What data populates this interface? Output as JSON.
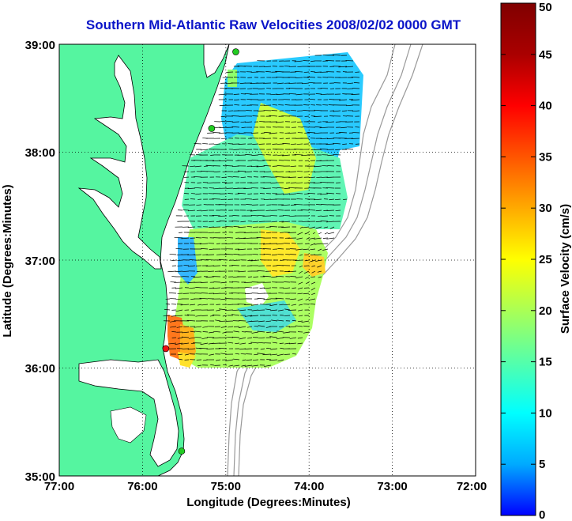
{
  "title": "Southern Mid-Atlantic Raw Velocities 2008/02/02 0000 GMT",
  "x_axis": {
    "label": "Longitude (Degrees:Minutes)",
    "ticks": [
      "77:00",
      "76:00",
      "75:00",
      "74:00",
      "73:00",
      "72:00"
    ]
  },
  "y_axis": {
    "label": "Latitude (Degrees:Minutes)",
    "ticks": [
      "39:00",
      "38:00",
      "37:00",
      "36:00",
      "35:00"
    ]
  },
  "colorbar": {
    "label": "Surface Velocity (cm/s)",
    "ticks": [
      "50",
      "45",
      "40",
      "35",
      "30",
      "25",
      "20",
      "15",
      "10",
      "5",
      "0"
    ],
    "min": 0,
    "max": 50,
    "colors": [
      "#0000ff",
      "#00aaff",
      "#00ffff",
      "#55ffaa",
      "#aaff55",
      "#ffff00",
      "#ffaa00",
      "#ff5500",
      "#ff0000",
      "#aa0000",
      "#800000"
    ]
  },
  "chart_data": {
    "type": "map",
    "xlim": [
      -77,
      -72
    ],
    "ylim": [
      35,
      39
    ],
    "grid": true,
    "land_color": "#55f5a0",
    "stations": [
      {
        "lon": -74.88,
        "lat": 38.93,
        "color": "#22cc22"
      },
      {
        "lon": -75.17,
        "lat": 38.22,
        "color": "#22cc22"
      },
      {
        "lon": -75.72,
        "lat": 36.18,
        "color": "#ee1111"
      },
      {
        "lon": -75.53,
        "lat": 35.23,
        "color": "#22cc22"
      }
    ]
  }
}
